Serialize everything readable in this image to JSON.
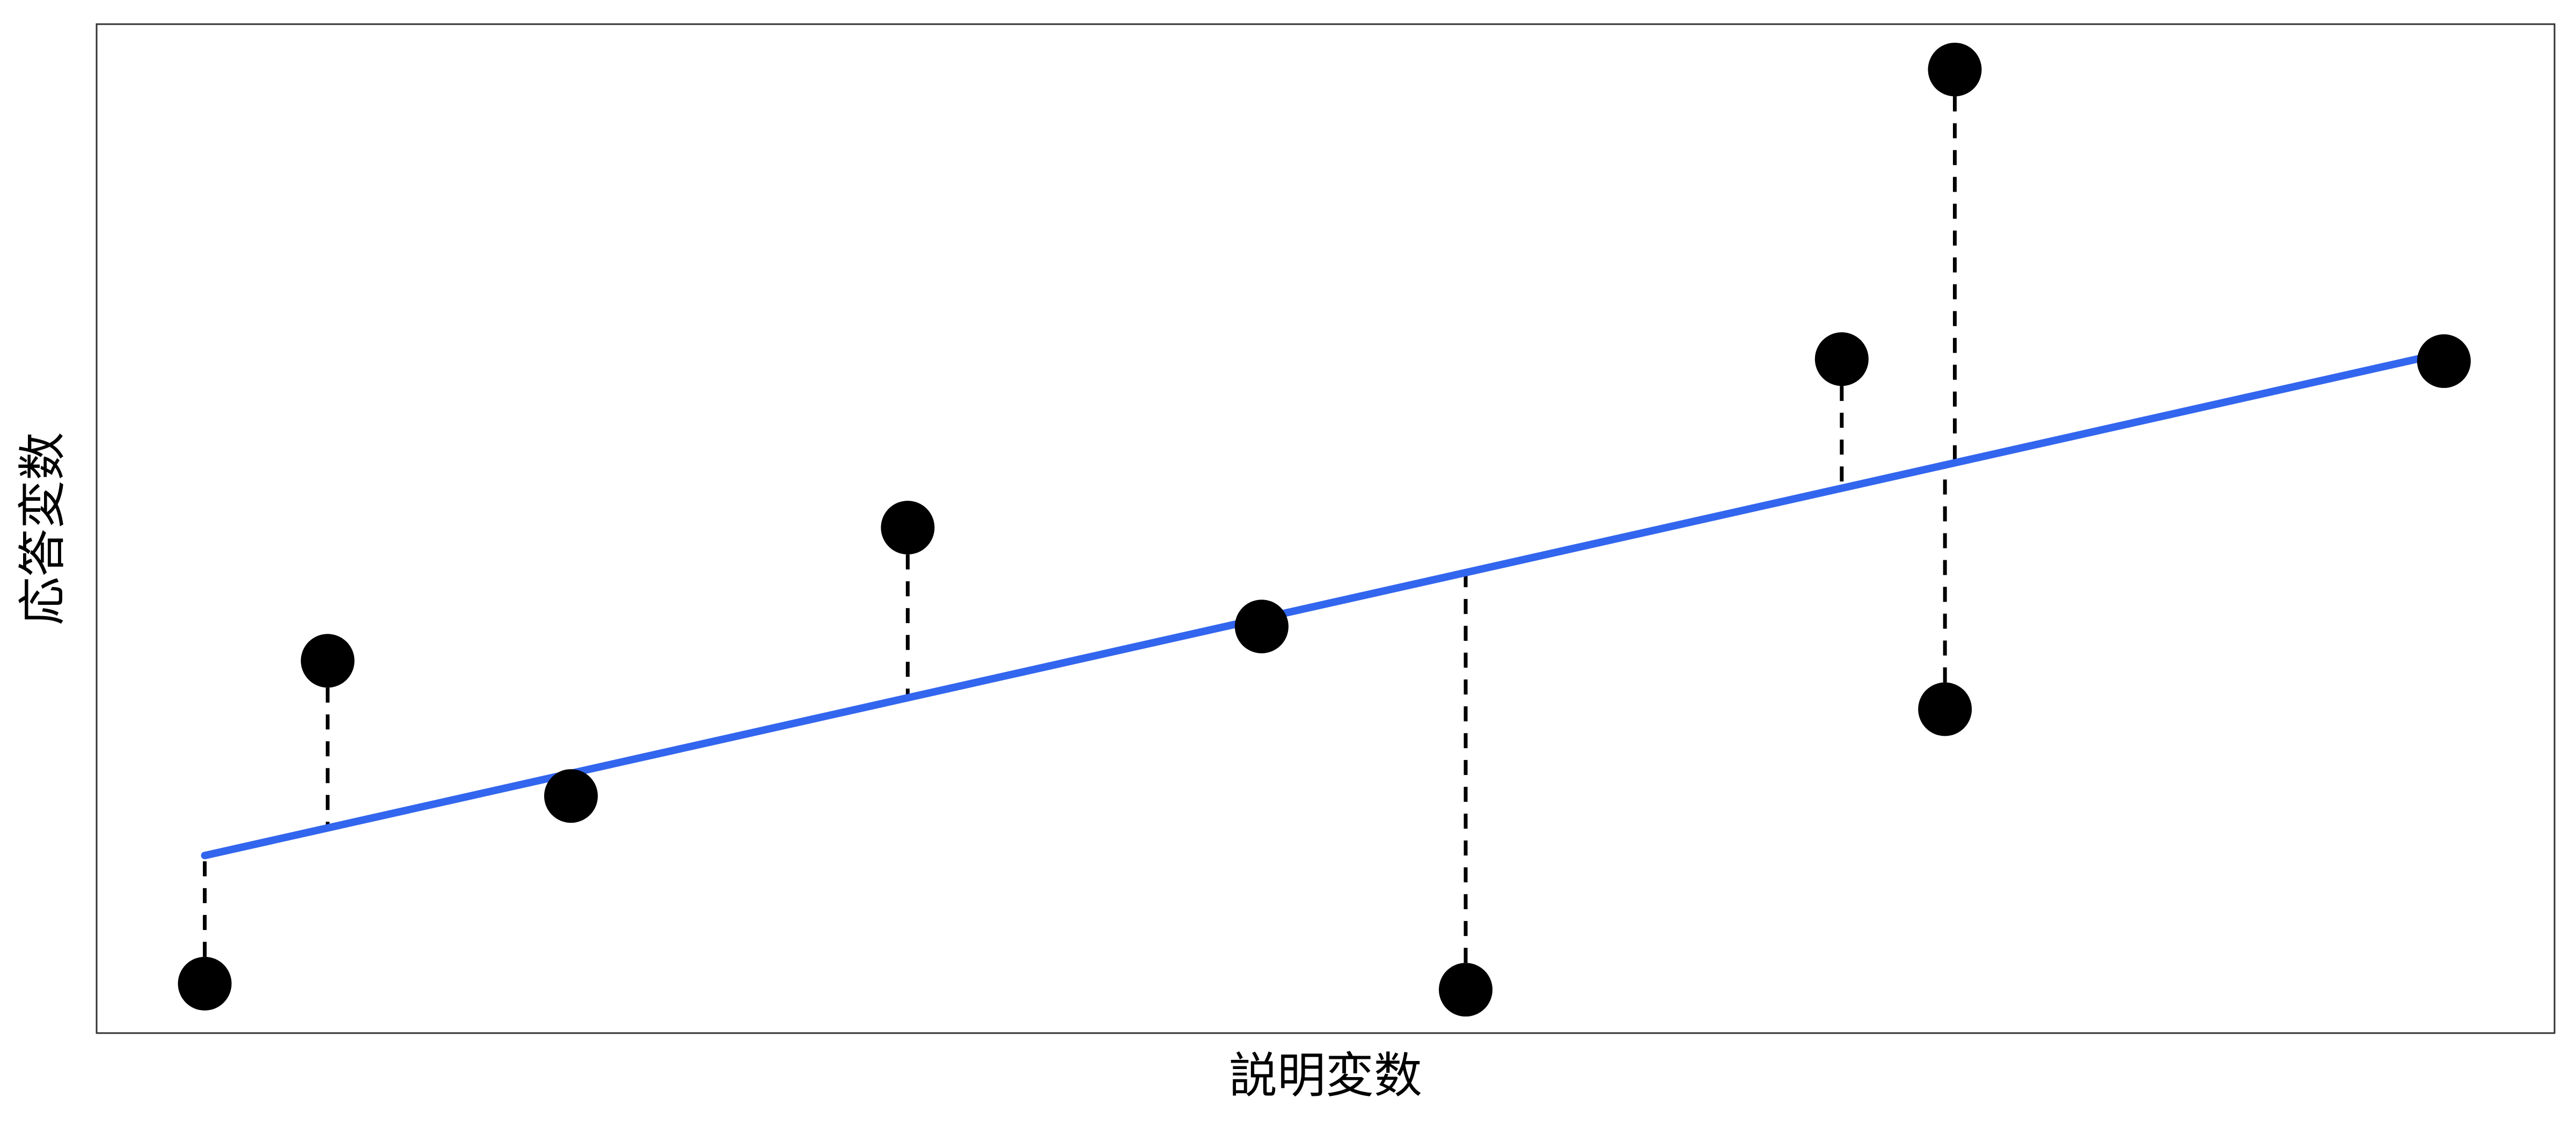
{
  "chart_data": {
    "type": "scatter",
    "title": "",
    "xlabel": "説明変数",
    "ylabel": "応答変数",
    "xlim": [
      0,
      10
    ],
    "ylim": [
      0,
      10
    ],
    "grid": false,
    "points": [
      {
        "x": 0.44,
        "y": 0.49
      },
      {
        "x": 0.94,
        "y": 3.69
      },
      {
        "x": 1.93,
        "y": 2.35
      },
      {
        "x": 3.3,
        "y": 5.01
      },
      {
        "x": 4.74,
        "y": 4.03
      },
      {
        "x": 5.57,
        "y": 0.43
      },
      {
        "x": 7.1,
        "y": 6.68
      },
      {
        "x": 7.52,
        "y": 3.21
      },
      {
        "x": 7.56,
        "y": 9.55
      },
      {
        "x": 9.55,
        "y": 6.66
      }
    ],
    "fit_line": {
      "x": [
        0.44,
        9.55
      ],
      "y": [
        1.76,
        6.74
      ]
    },
    "colors": {
      "points": "#000000",
      "fit_line": "#3366ee",
      "residuals": "#000000",
      "frame": "#333333"
    }
  }
}
